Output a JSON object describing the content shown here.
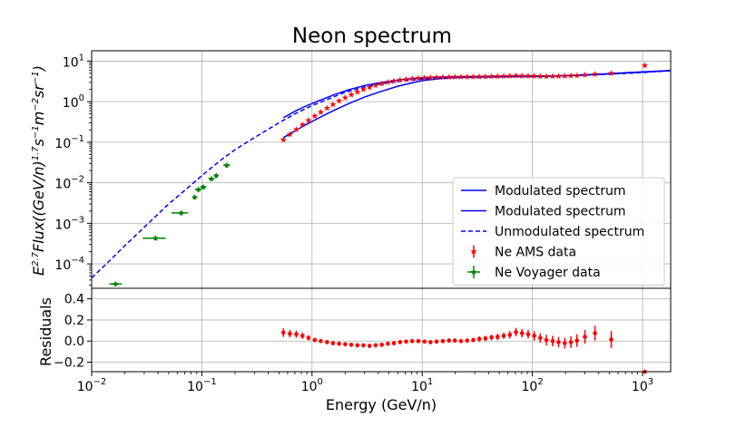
{
  "chart_data": {
    "type": "line",
    "title": "Neon spectrum",
    "xlabel": "Energy (GeV/n)",
    "ylabel_top": "E^{2.7}Flux((GeV/n)^{1.7}s^{-1}m^{-2}sr^{-1})",
    "ylabel_top_parts": [
      "E",
      "2.7",
      "Flux((GeV/n)",
      "1.7",
      "s",
      "−1",
      "m",
      "−2",
      "sr",
      "−1",
      ")"
    ],
    "ylabel_bottom": "Residuals",
    "x_scale": "log",
    "xlim": [
      0.01,
      1800
    ],
    "x_ticks": [
      {
        "value": 0.01,
        "base": "10",
        "exp": "−2"
      },
      {
        "value": 0.1,
        "base": "10",
        "exp": "−1"
      },
      {
        "value": 1,
        "base": "10",
        "exp": "0"
      },
      {
        "value": 10,
        "base": "10",
        "exp": "1"
      },
      {
        "value": 100,
        "base": "10",
        "exp": "2"
      },
      {
        "value": 1000,
        "base": "10",
        "exp": "3"
      }
    ],
    "top_panel": {
      "y_scale": "log",
      "ylim": [
        2.5e-05,
        18
      ],
      "y_ticks": [
        {
          "value": 0.0001,
          "base": "10",
          "exp": "−4"
        },
        {
          "value": 0.001,
          "base": "10",
          "exp": "−3"
        },
        {
          "value": 0.01,
          "base": "10",
          "exp": "−2"
        },
        {
          "value": 0.1,
          "base": "10",
          "exp": "−1"
        },
        {
          "value": 1,
          "base": "10",
          "exp": "0"
        },
        {
          "value": 10,
          "base": "10",
          "exp": "1"
        }
      ],
      "grid": true,
      "legend_position": "lower-right",
      "series": [
        {
          "name": "Modulated spectrum",
          "style": "solid",
          "color": "#0000ff",
          "x": [
            0.55,
            0.7,
            0.9,
            1.2,
            1.6,
            2.2,
            3,
            4,
            6,
            8,
            10,
            15,
            20,
            30,
            50,
            80,
            120,
            200,
            400,
            800,
            1800
          ],
          "y": [
            0.13,
            0.19,
            0.28,
            0.42,
            0.62,
            0.92,
            1.3,
            1.7,
            2.4,
            2.9,
            3.3,
            3.75,
            3.95,
            4.05,
            4.1,
            4.15,
            4.2,
            4.35,
            4.7,
            5.2,
            5.8
          ]
        },
        {
          "name": "Modulated spectrum",
          "style": "solid",
          "color": "#0000ff",
          "x": [
            0.55,
            0.7,
            0.9,
            1.2,
            1.6,
            2.2,
            3,
            4,
            6,
            8,
            10,
            15,
            20,
            30,
            50,
            80,
            120,
            200,
            400,
            800,
            1800
          ],
          "y": [
            0.4,
            0.58,
            0.8,
            1.1,
            1.5,
            2.0,
            2.5,
            2.9,
            3.4,
            3.7,
            3.9,
            4.05,
            4.1,
            4.15,
            4.18,
            4.2,
            4.25,
            4.4,
            4.75,
            5.25,
            5.85
          ]
        },
        {
          "name": "Unmodulated spectrum",
          "style": "dashed",
          "color": "#0000ff",
          "x": [
            0.01,
            0.015,
            0.02,
            0.03,
            0.05,
            0.07,
            0.1,
            0.15,
            0.2,
            0.3,
            0.5,
            0.7,
            1,
            2,
            3,
            5,
            10,
            20,
            50,
            100,
            300,
            1000,
            1800
          ],
          "y": [
            4.5e-05,
            0.00013,
            0.00028,
            0.0008,
            0.003,
            0.0065,
            0.015,
            0.037,
            0.065,
            0.13,
            0.3,
            0.5,
            0.8,
            1.7,
            2.3,
            3.0,
            3.6,
            3.95,
            4.12,
            4.2,
            4.5,
            5.2,
            5.85
          ]
        }
      ],
      "ams_data": {
        "name": "Ne AMS data",
        "color": "#ff0000",
        "x": [
          0.55,
          0.63,
          0.72,
          0.82,
          0.93,
          1.06,
          1.2,
          1.37,
          1.55,
          1.76,
          2.0,
          2.27,
          2.58,
          2.93,
          3.33,
          3.78,
          4.3,
          4.88,
          5.54,
          6.3,
          7.15,
          8.12,
          9.22,
          10.5,
          11.9,
          13.5,
          15.4,
          17.5,
          19.8,
          22.5,
          25.6,
          29.1,
          33.0,
          37.5,
          42.6,
          48.4,
          55.0,
          62.5,
          71,
          80.6,
          91.6,
          104,
          118,
          134,
          153,
          173,
          197,
          224,
          254,
          300,
          370,
          520,
          1050
        ],
        "y": [
          0.115,
          0.155,
          0.205,
          0.27,
          0.345,
          0.44,
          0.55,
          0.69,
          0.85,
          1.04,
          1.25,
          1.48,
          1.73,
          2.0,
          2.26,
          2.53,
          2.78,
          3.02,
          3.22,
          3.4,
          3.55,
          3.68,
          3.78,
          3.85,
          3.92,
          3.97,
          4.0,
          4.03,
          4.05,
          4.07,
          4.08,
          4.1,
          4.12,
          4.14,
          4.18,
          4.2,
          4.25,
          4.3,
          4.35,
          4.32,
          4.3,
          4.28,
          4.22,
          4.2,
          4.22,
          4.25,
          4.3,
          4.35,
          4.4,
          4.55,
          4.75,
          5.0,
          7.8
        ],
        "marker": "star"
      },
      "voyager_data": {
        "name": "Ne Voyager data",
        "color": "#008000",
        "points": [
          {
            "x": 0.0165,
            "y": 3.2e-05,
            "xlo": 0.0145,
            "xhi": 0.0188
          },
          {
            "x": 0.038,
            "y": 0.00043,
            "xlo": 0.029,
            "xhi": 0.047
          },
          {
            "x": 0.065,
            "y": 0.0018,
            "xlo": 0.053,
            "xhi": 0.075
          },
          {
            "x": 0.086,
            "y": 0.0044,
            "xlo": 0.082,
            "xhi": 0.091
          },
          {
            "x": 0.093,
            "y": 0.0068,
            "xlo": 0.087,
            "xhi": 0.099
          },
          {
            "x": 0.103,
            "y": 0.0078,
            "xlo": 0.097,
            "xhi": 0.11
          },
          {
            "x": 0.122,
            "y": 0.0125,
            "xlo": 0.115,
            "xhi": 0.13
          },
          {
            "x": 0.135,
            "y": 0.015,
            "xlo": 0.128,
            "xhi": 0.142
          },
          {
            "x": 0.168,
            "y": 0.027,
            "xlo": 0.157,
            "xhi": 0.18
          }
        ]
      },
      "legend": [
        {
          "label": "Modulated spectrum",
          "style": "solid"
        },
        {
          "label": "Modulated spectrum",
          "style": "solid"
        },
        {
          "label": "Unmodulated spectrum",
          "style": "dashed"
        },
        {
          "label": "Ne AMS data",
          "style": "red-errorbar"
        },
        {
          "label": "Ne Voyager data",
          "style": "green-errorbar"
        }
      ]
    },
    "bottom_panel": {
      "y_scale": "linear",
      "ylim": [
        -0.29,
        0.5
      ],
      "y_ticks": [
        {
          "value": 0.4,
          "label": "0.4"
        },
        {
          "value": 0.2,
          "label": "0.2"
        },
        {
          "value": 0.0,
          "label": "0.0"
        },
        {
          "value": -0.2,
          "label": "−0.2"
        }
      ],
      "grid": true,
      "residuals": {
        "color": "#ff0000",
        "x": [
          0.55,
          0.63,
          0.72,
          0.82,
          0.93,
          1.06,
          1.2,
          1.37,
          1.55,
          1.76,
          2.0,
          2.27,
          2.58,
          2.93,
          3.33,
          3.78,
          4.3,
          4.88,
          5.54,
          6.3,
          7.15,
          8.12,
          9.22,
          10.5,
          11.9,
          13.5,
          15.4,
          17.5,
          19.8,
          22.5,
          25.6,
          29.1,
          33.0,
          37.5,
          42.6,
          48.4,
          55.0,
          62.5,
          71,
          80.6,
          91.6,
          104,
          118,
          134,
          153,
          173,
          197,
          224,
          254,
          300,
          370,
          520,
          1050
        ],
        "y": [
          0.08,
          0.07,
          0.065,
          0.05,
          0.03,
          0.01,
          0.0,
          -0.01,
          -0.02,
          -0.025,
          -0.03,
          -0.035,
          -0.04,
          -0.04,
          -0.045,
          -0.04,
          -0.035,
          -0.025,
          -0.02,
          -0.01,
          -0.005,
          0.0,
          0.0,
          -0.005,
          -0.01,
          -0.005,
          0.0,
          0.005,
          0.005,
          0.0,
          0.005,
          0.01,
          0.02,
          0.025,
          0.035,
          0.04,
          0.05,
          0.06,
          0.085,
          0.075,
          0.065,
          0.05,
          0.03,
          0.01,
          0.0,
          -0.01,
          -0.02,
          -0.01,
          0.005,
          0.04,
          0.075,
          0.015,
          -0.29
        ],
        "err": [
          0.04,
          0.035,
          0.035,
          0.03,
          0.025,
          0.02,
          0.02,
          0.02,
          0.02,
          0.02,
          0.02,
          0.02,
          0.02,
          0.02,
          0.02,
          0.02,
          0.02,
          0.02,
          0.02,
          0.02,
          0.02,
          0.02,
          0.02,
          0.02,
          0.02,
          0.02,
          0.02,
          0.02,
          0.02,
          0.02,
          0.02,
          0.02,
          0.025,
          0.025,
          0.025,
          0.03,
          0.03,
          0.035,
          0.04,
          0.04,
          0.04,
          0.045,
          0.045,
          0.05,
          0.05,
          0.05,
          0.05,
          0.055,
          0.06,
          0.065,
          0.07,
          0.08,
          0.0
        ]
      }
    }
  }
}
